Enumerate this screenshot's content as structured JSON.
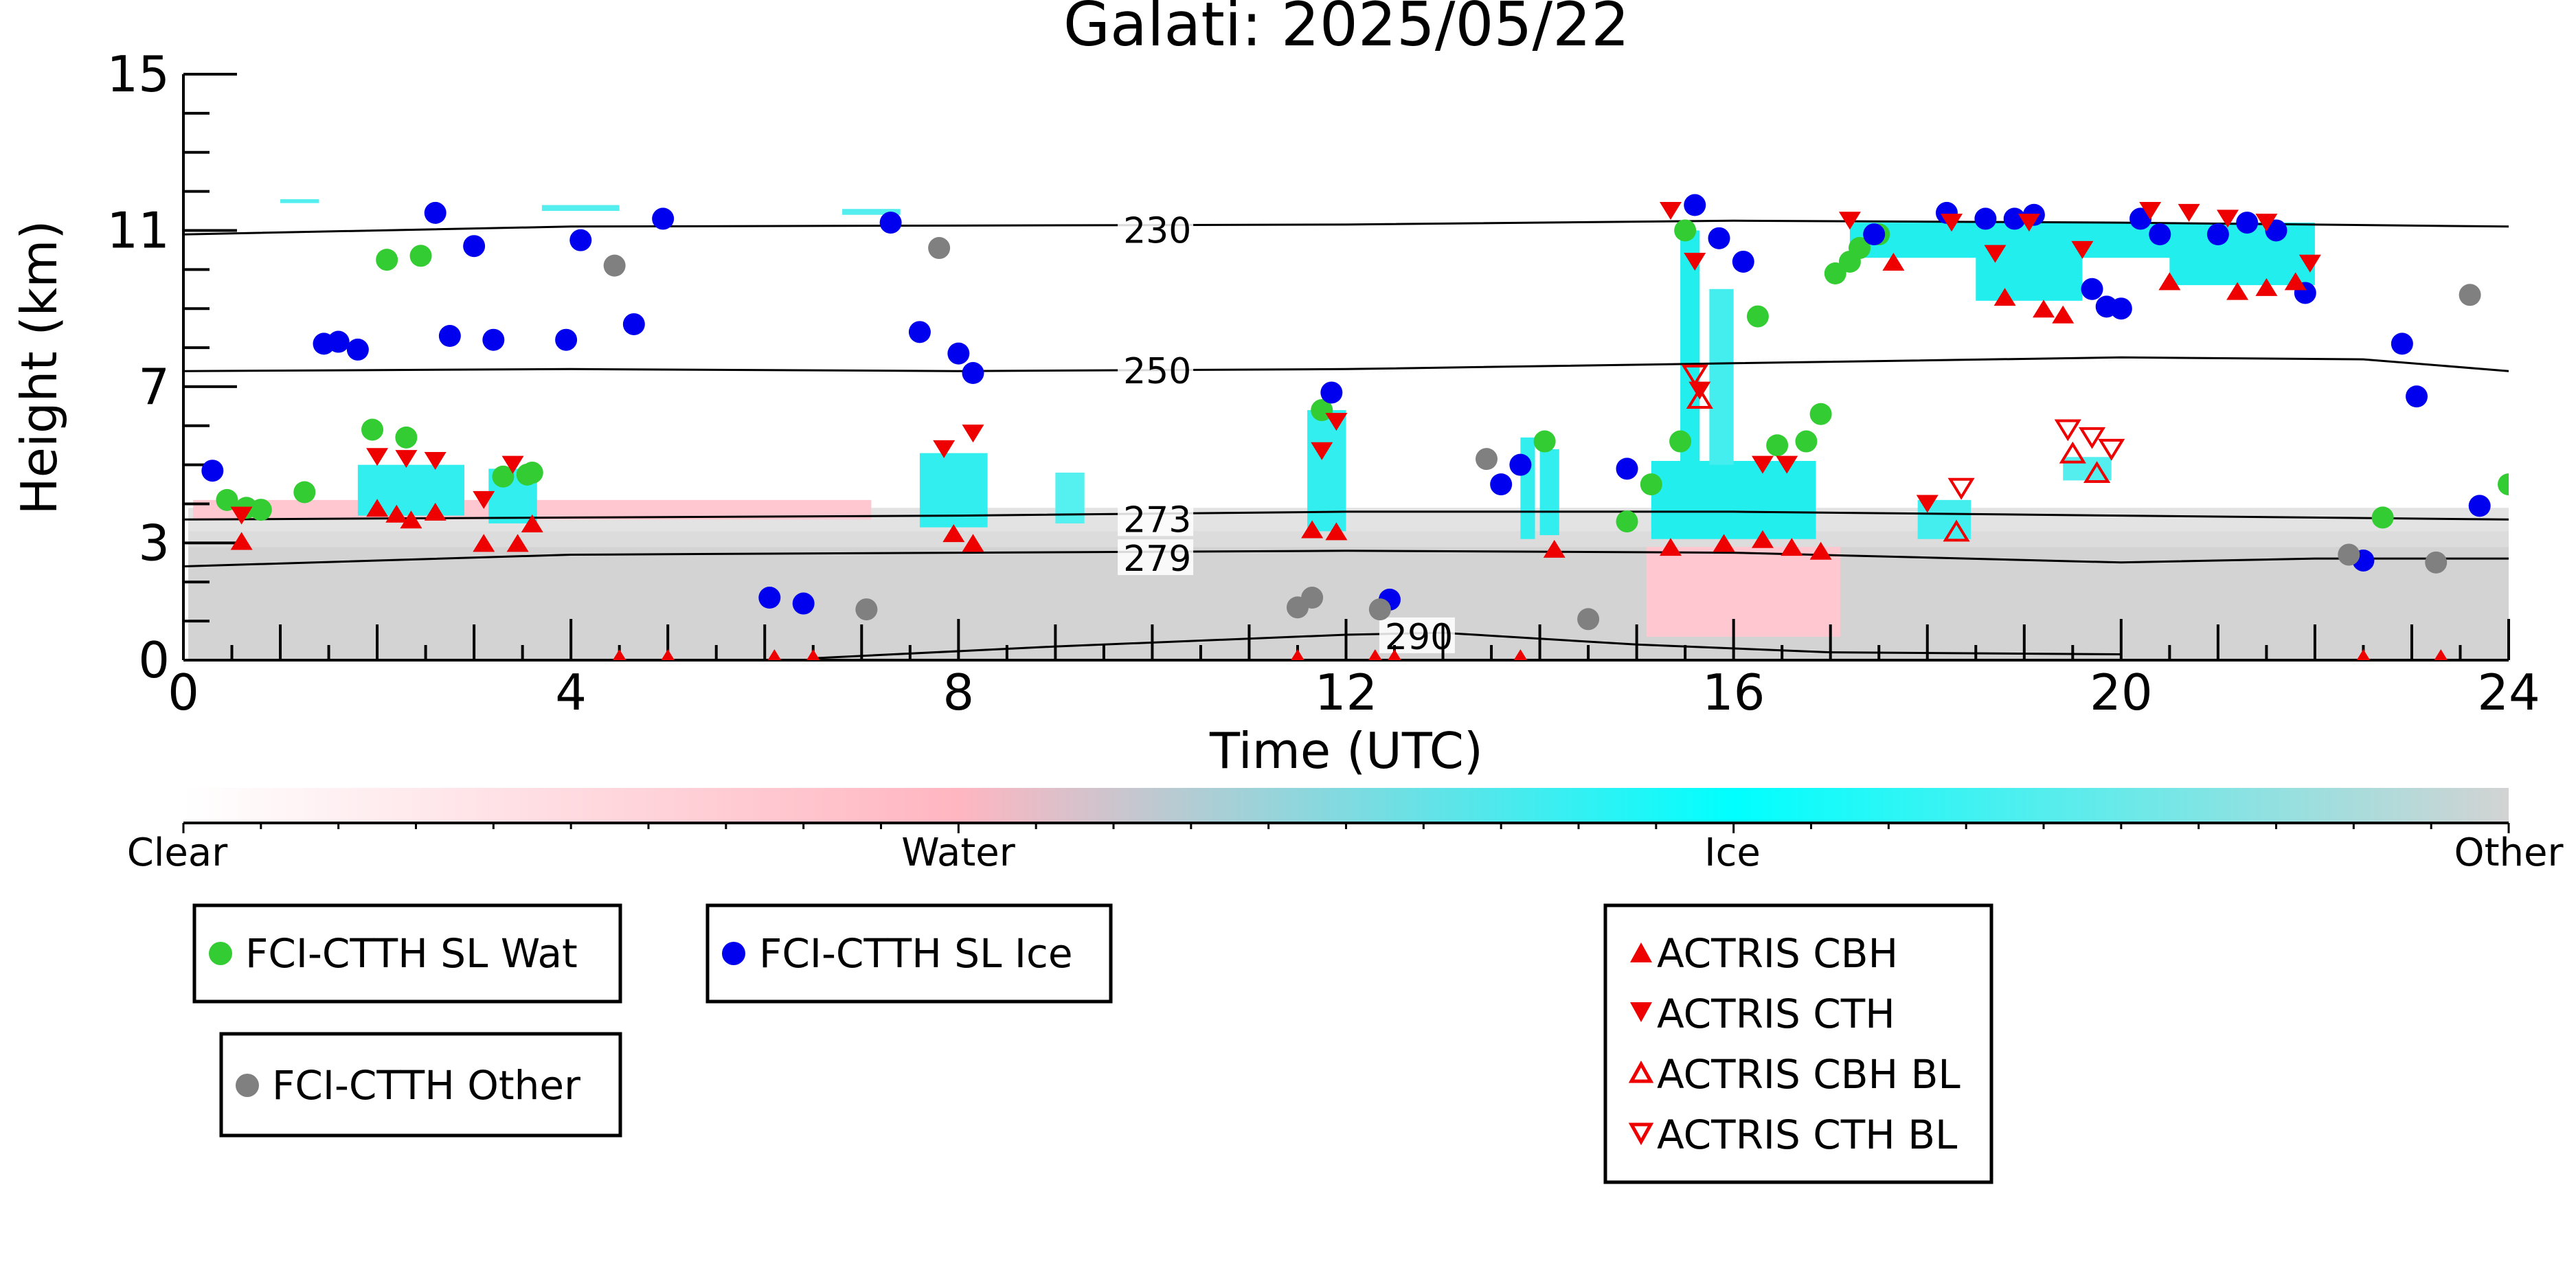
{
  "chart_data": {
    "type": "scatter",
    "title": "Galati: 2025/05/22",
    "xlabel": "Time (UTC)",
    "ylabel": "Height (km)",
    "xlim": [
      0,
      24
    ],
    "ylim": [
      0,
      15
    ],
    "x_ticks": [
      0,
      4,
      8,
      12,
      16,
      20,
      24
    ],
    "y_ticks": [
      0,
      3,
      7,
      11,
      15
    ],
    "grid": false,
    "colorbar": {
      "labels": [
        "Clear",
        "Water",
        "Ice",
        "Other"
      ],
      "colors": [
        "#ffffff",
        "#ffb6c1",
        "#00ffff",
        "#d3d3d3"
      ]
    },
    "contour_labels": [
      "230",
      "250",
      "273",
      "279",
      "290"
    ],
    "contours": [
      {
        "label": "230",
        "points": [
          [
            0,
            10.9
          ],
          [
            4,
            11.1
          ],
          [
            12,
            11.15
          ],
          [
            16,
            11.25
          ],
          [
            20,
            11.2
          ],
          [
            24,
            11.1
          ]
        ],
        "label_pos": [
          9.7,
          11.0
        ]
      },
      {
        "label": "250",
        "points": [
          [
            0,
            7.4
          ],
          [
            4,
            7.45
          ],
          [
            8,
            7.4
          ],
          [
            12,
            7.45
          ],
          [
            16,
            7.6
          ],
          [
            20,
            7.75
          ],
          [
            22.5,
            7.7
          ],
          [
            24,
            7.4
          ]
        ],
        "label_pos": [
          9.7,
          7.4
        ]
      },
      {
        "label": "273",
        "points": [
          [
            0,
            3.6
          ],
          [
            4,
            3.65
          ],
          [
            8,
            3.7
          ],
          [
            12,
            3.8
          ],
          [
            16,
            3.8
          ],
          [
            20,
            3.7
          ],
          [
            24,
            3.6
          ]
        ],
        "label_pos": [
          9.7,
          3.6
        ]
      },
      {
        "label": "279",
        "points": [
          [
            0,
            2.4
          ],
          [
            4,
            2.7
          ],
          [
            8,
            2.75
          ],
          [
            12,
            2.8
          ],
          [
            16,
            2.75
          ],
          [
            20,
            2.5
          ],
          [
            22,
            2.6
          ],
          [
            24,
            2.6
          ]
        ],
        "label_pos": [
          9.7,
          2.6
        ]
      },
      {
        "label": "290",
        "points": [
          [
            6.5,
            0.05
          ],
          [
            9,
            0.35
          ],
          [
            12,
            0.65
          ],
          [
            13,
            0.7
          ],
          [
            15,
            0.4
          ],
          [
            17,
            0.2
          ],
          [
            20,
            0.15
          ]
        ],
        "label_pos": [
          12.4,
          0.6
        ]
      }
    ],
    "legends": [
      {
        "entries": [
          "FCI-CTTH SL Wat"
        ]
      },
      {
        "entries": [
          "FCI-CTTH SL Ice"
        ]
      },
      {
        "entries": [
          "FCI-CTTH Other"
        ]
      },
      {
        "entries": [
          "ACTRIS CBH",
          "ACTRIS CTH",
          "ACTRIS CBH BL",
          "ACTRIS CTH BL"
        ]
      }
    ],
    "series": [
      {
        "name": "FCI-CTTH SL Wat",
        "marker": "circle",
        "color": "#33cc33",
        "points": [
          [
            0.45,
            4.1
          ],
          [
            0.65,
            3.9
          ],
          [
            0.8,
            3.85
          ],
          [
            1.25,
            4.3
          ],
          [
            2.1,
            10.25
          ],
          [
            2.45,
            10.35
          ],
          [
            1.95,
            5.9
          ],
          [
            2.3,
            5.7
          ],
          [
            3.3,
            4.7
          ],
          [
            3.55,
            4.75
          ],
          [
            3.6,
            4.8
          ],
          [
            11.75,
            6.4
          ],
          [
            14.05,
            5.6
          ],
          [
            14.9,
            3.55
          ],
          [
            15.15,
            4.5
          ],
          [
            15.45,
            5.6
          ],
          [
            15.5,
            11.0
          ],
          [
            16.25,
            8.8
          ],
          [
            16.45,
            5.5
          ],
          [
            16.75,
            5.6
          ],
          [
            16.9,
            6.3
          ],
          [
            17.05,
            9.9
          ],
          [
            17.2,
            10.2
          ],
          [
            17.3,
            10.55
          ],
          [
            17.5,
            10.9
          ],
          [
            22.7,
            3.65
          ],
          [
            24.0,
            4.5
          ]
        ]
      },
      {
        "name": "FCI-CTTH SL Ice",
        "marker": "circle",
        "color": "#0000ee",
        "points": [
          [
            0.3,
            4.85
          ],
          [
            1.45,
            8.1
          ],
          [
            1.6,
            8.15
          ],
          [
            1.8,
            7.95
          ],
          [
            2.6,
            11.45
          ],
          [
            2.75,
            8.3
          ],
          [
            3.0,
            10.6
          ],
          [
            3.2,
            8.2
          ],
          [
            3.95,
            8.2
          ],
          [
            4.1,
            10.75
          ],
          [
            4.65,
            8.6
          ],
          [
            4.95,
            11.3
          ],
          [
            6.05,
            1.6
          ],
          [
            6.4,
            1.45
          ],
          [
            7.3,
            11.2
          ],
          [
            7.6,
            8.4
          ],
          [
            8.0,
            7.85
          ],
          [
            8.15,
            7.35
          ],
          [
            11.85,
            6.85
          ],
          [
            12.45,
            1.55
          ],
          [
            13.6,
            4.5
          ],
          [
            13.8,
            5.0
          ],
          [
            14.9,
            4.9
          ],
          [
            15.6,
            11.65
          ],
          [
            15.85,
            10.8
          ],
          [
            16.1,
            10.2
          ],
          [
            17.45,
            10.9
          ],
          [
            18.2,
            11.45
          ],
          [
            18.6,
            11.3
          ],
          [
            18.9,
            11.3
          ],
          [
            19.1,
            11.4
          ],
          [
            19.7,
            9.5
          ],
          [
            19.85,
            9.05
          ],
          [
            20.0,
            9.0
          ],
          [
            20.2,
            11.3
          ],
          [
            20.4,
            10.9
          ],
          [
            21.0,
            10.9
          ],
          [
            21.3,
            11.2
          ],
          [
            21.6,
            11.0
          ],
          [
            21.9,
            9.4
          ],
          [
            22.5,
            2.55
          ],
          [
            22.9,
            8.1
          ],
          [
            23.05,
            6.75
          ],
          [
            23.7,
            3.95
          ]
        ]
      },
      {
        "name": "FCI-CTTH Other",
        "marker": "circle",
        "color": "#808080",
        "points": [
          [
            4.45,
            10.1
          ],
          [
            7.05,
            1.3
          ],
          [
            7.8,
            10.55
          ],
          [
            11.5,
            1.35
          ],
          [
            11.65,
            1.6
          ],
          [
            12.35,
            1.3
          ],
          [
            13.45,
            5.15
          ],
          [
            14.5,
            1.05
          ],
          [
            22.35,
            2.7
          ],
          [
            23.25,
            2.5
          ],
          [
            23.6,
            9.35
          ]
        ]
      },
      {
        "name": "ACTRIS CBH",
        "marker": "triangle-up",
        "color": "#ee0000",
        "filled": true,
        "points": [
          [
            0.6,
            3.05
          ],
          [
            2.0,
            3.9
          ],
          [
            2.2,
            3.75
          ],
          [
            2.35,
            3.6
          ],
          [
            2.6,
            3.8
          ],
          [
            3.1,
            3.0
          ],
          [
            3.45,
            3.0
          ],
          [
            3.6,
            3.5
          ],
          [
            7.95,
            3.25
          ],
          [
            8.15,
            3.0
          ],
          [
            11.65,
            3.35
          ],
          [
            11.9,
            3.3
          ],
          [
            14.15,
            2.85
          ],
          [
            15.35,
            2.9
          ],
          [
            15.9,
            3.0
          ],
          [
            16.3,
            3.1
          ],
          [
            16.6,
            2.9
          ],
          [
            16.9,
            2.8
          ],
          [
            17.65,
            10.2
          ],
          [
            18.8,
            9.3
          ],
          [
            19.2,
            9.0
          ],
          [
            19.4,
            8.85
          ],
          [
            20.5,
            9.7
          ],
          [
            21.2,
            9.45
          ],
          [
            21.5,
            9.55
          ],
          [
            21.8,
            9.7
          ],
          [
            4.5,
            0.05
          ],
          [
            5.0,
            0.05
          ],
          [
            6.1,
            0.05
          ],
          [
            6.5,
            0.05
          ],
          [
            11.5,
            0.05
          ],
          [
            12.3,
            0.05
          ],
          [
            12.5,
            0.05
          ],
          [
            13.8,
            0.05
          ],
          [
            22.5,
            0.05
          ],
          [
            23.3,
            0.05
          ]
        ]
      },
      {
        "name": "ACTRIS CTH",
        "marker": "triangle-down",
        "color": "#ee0000",
        "filled": true,
        "points": [
          [
            0.6,
            3.7
          ],
          [
            2.0,
            5.2
          ],
          [
            2.3,
            5.15
          ],
          [
            2.6,
            5.1
          ],
          [
            3.1,
            4.1
          ],
          [
            3.4,
            5.0
          ],
          [
            7.85,
            5.4
          ],
          [
            8.15,
            5.8
          ],
          [
            11.75,
            5.35
          ],
          [
            11.9,
            6.1
          ],
          [
            15.35,
            11.5
          ],
          [
            15.6,
            10.2
          ],
          [
            15.65,
            6.9
          ],
          [
            16.3,
            5.0
          ],
          [
            16.55,
            5.0
          ],
          [
            17.2,
            11.25
          ],
          [
            18.25,
            11.2
          ],
          [
            18.7,
            10.4
          ],
          [
            19.05,
            11.2
          ],
          [
            19.6,
            10.5
          ],
          [
            20.3,
            11.5
          ],
          [
            20.7,
            11.45
          ],
          [
            21.1,
            11.3
          ],
          [
            21.5,
            11.2
          ],
          [
            21.95,
            10.15
          ],
          [
            18.0,
            4.0
          ]
        ]
      },
      {
        "name": "ACTRIS CBH BL",
        "marker": "triangle-up",
        "color": "#ee0000",
        "filled": false,
        "points": [
          [
            15.65,
            6.7
          ],
          [
            18.3,
            3.3
          ],
          [
            19.5,
            5.3
          ],
          [
            19.75,
            4.8
          ]
        ]
      },
      {
        "name": "ACTRIS CTH BL",
        "marker": "triangle-down",
        "color": "#ee0000",
        "filled": false,
        "points": [
          [
            15.6,
            7.3
          ],
          [
            18.35,
            4.4
          ],
          [
            19.45,
            5.9
          ],
          [
            19.7,
            5.7
          ],
          [
            19.9,
            5.4
          ]
        ]
      }
    ]
  }
}
